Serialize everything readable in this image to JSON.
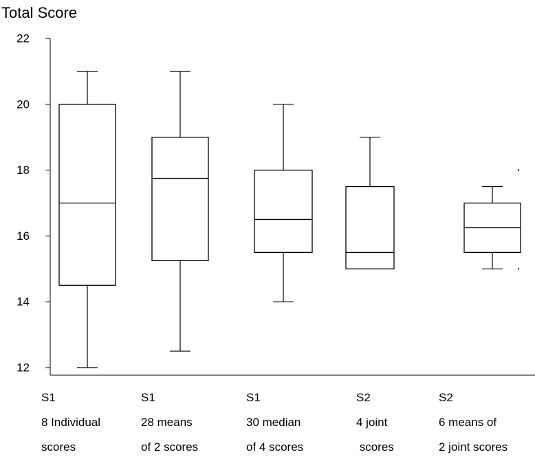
{
  "chart_data": {
    "type": "box",
    "title": "",
    "ylabel": "Total Score",
    "xlabel": "",
    "ylim": [
      12,
      22
    ],
    "yticks": [
      "12",
      "14",
      "16",
      "18",
      "20",
      "22"
    ],
    "grid": false,
    "legend": "none",
    "categories": [
      {
        "lines": [
          "S1",
          "8 Individual",
          "scores"
        ]
      },
      {
        "lines": [
          "S1",
          "28 means",
          "of 2 scores"
        ]
      },
      {
        "lines": [
          "S1",
          "30 median",
          "of 4 scores"
        ]
      },
      {
        "lines": [
          "S2",
          "4 joint",
          " scores"
        ]
      },
      {
        "lines": [
          "S2",
          "6 means of",
          "2 joint scores"
        ]
      }
    ],
    "boxes": [
      {
        "min": 12,
        "q1": 14.5,
        "median": 17,
        "q3": 20,
        "max": 21
      },
      {
        "min": 12.5,
        "q1": 15.25,
        "median": 17.75,
        "q3": 19,
        "max": 21
      },
      {
        "min": 14,
        "q1": 15.5,
        "median": 16.5,
        "q3": 18,
        "max": 20
      },
      {
        "min": 15,
        "q1": 15,
        "median": 15.5,
        "q3": 17.5,
        "max": 19
      },
      {
        "min": 15,
        "q1": 15.5,
        "median": 16.25,
        "q3": 17,
        "max": 17.5
      }
    ],
    "stray_marks": [
      {
        "y": 18,
        "side": "right-of-last-box"
      },
      {
        "y": 15,
        "side": "right-of-last-box"
      }
    ],
    "colors": {
      "stroke": "#000000",
      "fill": "#ffffff",
      "background": "#ffffff"
    }
  }
}
